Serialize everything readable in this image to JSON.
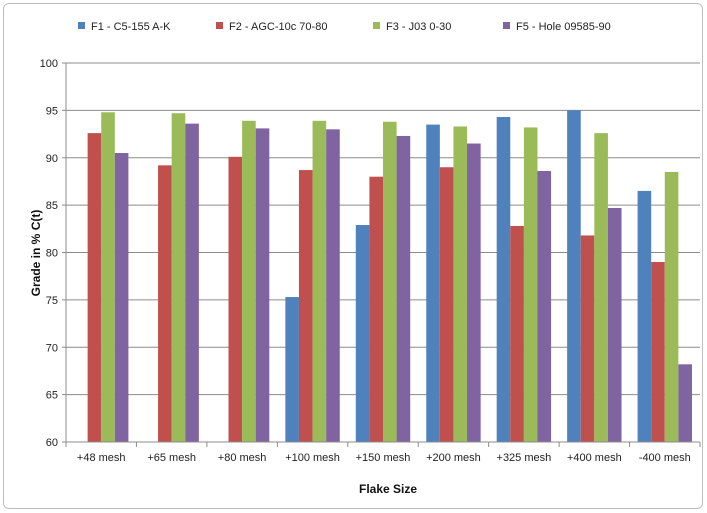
{
  "chart_data": {
    "type": "bar",
    "categories": [
      "+48 mesh",
      "+65 mesh",
      "+80 mesh",
      "+100 mesh",
      "+150 mesh",
      "+200 mesh",
      "+325 mesh",
      "+400 mesh",
      "-400 mesh"
    ],
    "series": [
      {
        "name": "F1 - C5-155 A-K",
        "color": "#4f81bd",
        "values": [
          null,
          null,
          null,
          75.3,
          82.9,
          93.5,
          94.3,
          95.0,
          86.5
        ]
      },
      {
        "name": "F2 - AGC-10c 70-80",
        "color": "#c0504d",
        "values": [
          92.6,
          89.2,
          90.1,
          88.7,
          88.0,
          89.0,
          82.8,
          81.8,
          79.0
        ]
      },
      {
        "name": "F3 - J03 0-30",
        "color": "#9bbb59",
        "values": [
          94.8,
          94.7,
          93.9,
          93.9,
          93.8,
          93.3,
          93.2,
          92.6,
          88.5
        ]
      },
      {
        "name": "F5 - Hole 09585-90",
        "color": "#8064a2",
        "values": [
          90.5,
          93.6,
          93.1,
          93.0,
          92.3,
          91.5,
          88.6,
          84.7,
          68.2
        ]
      }
    ],
    "title": "",
    "xlabel": "Flake Size",
    "ylabel": "Grade in % C(t)",
    "ylim": [
      60,
      100
    ],
    "yticks": [
      60,
      65,
      70,
      75,
      80,
      85,
      90,
      95,
      100
    ],
    "grid": true,
    "legend_position": "top"
  }
}
